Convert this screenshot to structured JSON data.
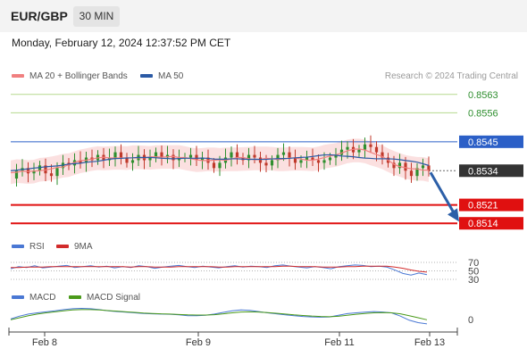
{
  "header": {
    "symbol": "EUR/GBP",
    "timeframe": "30 MIN",
    "datetime": "Monday, February 12, 2024 12:37:52 PM CET"
  },
  "legend": {
    "ma20": "MA 20 + Bollinger Bands",
    "ma50": "MA 50",
    "source": "Research © 2024 Trading Central",
    "rsi": "RSI",
    "rsi_ma": "9MA",
    "macd": "MACD",
    "macd_signal": "MACD Signal"
  },
  "colors": {
    "up": "#2f8f2f",
    "down": "#c0392b",
    "ma20": "#f08080",
    "ma50": "#2b5aa5",
    "bands": "#fadada",
    "resistance_green": "#b5d98e",
    "pivot_blue": "#2b5fc7",
    "support_red": "#e01010",
    "current_dark": "#333333",
    "arrow": "#2c5fa8",
    "rsi": "#4a78d4",
    "rsi_ma": "#d22b2b",
    "macd": "#4a78d4",
    "macd_signal": "#4a9a1a"
  },
  "chart_data": [
    {
      "type": "candlestick",
      "title": "EUR/GBP",
      "x_ticks": [
        "Feb 8",
        "Feb 9",
        "Feb 11",
        "Feb 13"
      ],
      "ylim": [
        0.851,
        0.8567
      ],
      "levels": [
        {
          "value": 0.8563,
          "label": "0.8563",
          "kind": "resistance"
        },
        {
          "value": 0.8556,
          "label": "0.8556",
          "kind": "resistance"
        },
        {
          "value": 0.8545,
          "label": "0.8545",
          "kind": "pivot"
        },
        {
          "value": 0.8534,
          "label": "0.8534",
          "kind": "current"
        },
        {
          "value": 0.8521,
          "label": "0.8521",
          "kind": "support"
        },
        {
          "value": 0.8514,
          "label": "0.8514",
          "kind": "support"
        }
      ],
      "forecast_arrow": {
        "from": 0.8534,
        "to": 0.8516,
        "direction": "down"
      },
      "price_path": [
        0.8531,
        0.8534,
        0.8535,
        0.8533,
        0.8534,
        0.8536,
        0.8533,
        0.8532,
        0.8535,
        0.8537,
        0.8536,
        0.8538,
        0.8537,
        0.8539,
        0.8538,
        0.854,
        0.8538,
        0.8539,
        0.8541,
        0.8539,
        0.8537,
        0.8538,
        0.854,
        0.8538,
        0.8539,
        0.8541,
        0.8539,
        0.854,
        0.8538,
        0.8539,
        0.8539,
        0.854,
        0.8538,
        0.8539,
        0.8537,
        0.8535,
        0.8537,
        0.8539,
        0.8541,
        0.8539,
        0.8538,
        0.854,
        0.8539,
        0.8537,
        0.8536,
        0.8538,
        0.854,
        0.8541,
        0.8539,
        0.8537,
        0.8538,
        0.8539,
        0.8538,
        0.8537,
        0.8538,
        0.8539,
        0.854,
        0.8542,
        0.8543,
        0.8541,
        0.8542,
        0.8544,
        0.8543,
        0.8541,
        0.8539,
        0.8537,
        0.8535,
        0.8537,
        0.8534,
        0.8532,
        0.8535,
        0.8536,
        0.8534
      ]
    },
    {
      "type": "line",
      "title": "RSI",
      "y_ticks": [
        70,
        50,
        30
      ],
      "series": [
        {
          "name": "RSI",
          "values": [
            55,
            60,
            58,
            62,
            57,
            59,
            61,
            63,
            58,
            60,
            62,
            59,
            61,
            57,
            60,
            58,
            62,
            60,
            56,
            59,
            61,
            63,
            60,
            58,
            61,
            59,
            57,
            60,
            62,
            59,
            61,
            60,
            58,
            62,
            64,
            61,
            59,
            57,
            60,
            58,
            55,
            60,
            62,
            64,
            63,
            60,
            61,
            59,
            52,
            44,
            40,
            45,
            41
          ]
        },
        {
          "name": "9MA",
          "values": [
            58,
            58,
            59,
            59,
            59,
            60,
            60,
            60,
            60,
            60,
            60,
            60,
            60,
            60,
            60,
            59,
            60,
            60,
            59,
            59,
            59,
            60,
            60,
            60,
            60,
            60,
            59,
            59,
            60,
            60,
            60,
            60,
            60,
            60,
            61,
            61,
            60,
            60,
            60,
            59,
            59,
            59,
            60,
            60,
            61,
            61,
            61,
            61,
            59,
            56,
            52,
            49,
            47
          ]
        }
      ]
    },
    {
      "type": "line",
      "title": "MACD",
      "y_ticks": [
        0
      ],
      "series": [
        {
          "name": "MACD",
          "values": [
            2.0,
            3.4,
            4.4,
            5.0,
            5.5,
            6.0,
            6.6,
            7.0,
            7.2,
            7.0,
            6.6,
            6.0,
            5.6,
            5.3,
            5.0,
            4.7,
            4.5,
            4.4,
            4.3,
            4.0,
            3.6,
            3.6,
            3.8,
            4.4,
            5.2,
            6.0,
            6.4,
            6.2,
            5.6,
            5.0,
            4.5,
            4.0,
            3.6,
            3.2,
            3.0,
            2.9,
            3.0,
            3.8,
            4.6,
            5.0,
            5.3,
            5.6,
            5.4,
            5.0,
            3.4,
            1.4,
            0.2,
            -0.4
          ]
        },
        {
          "name": "MACD Signal",
          "values": [
            1.6,
            2.6,
            3.6,
            4.4,
            5.0,
            5.5,
            6.0,
            6.4,
            6.6,
            6.6,
            6.4,
            6.1,
            5.8,
            5.5,
            5.2,
            4.9,
            4.7,
            4.5,
            4.4,
            4.2,
            4.0,
            3.9,
            3.9,
            4.1,
            4.5,
            5.0,
            5.4,
            5.5,
            5.4,
            5.1,
            4.8,
            4.4,
            4.0,
            3.7,
            3.4,
            3.2,
            3.1,
            3.3,
            3.8,
            4.3,
            4.7,
            5.0,
            5.1,
            5.0,
            4.5,
            3.6,
            2.6,
            1.6
          ]
        }
      ]
    }
  ]
}
